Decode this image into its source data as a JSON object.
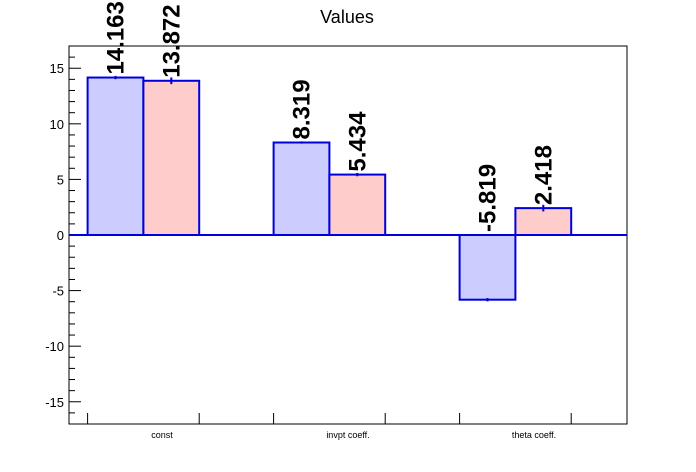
{
  "chart_data": {
    "type": "bar",
    "title": "Values",
    "xlabel": "",
    "ylabel": "",
    "categories": [
      "const",
      "invpt coeff.",
      "theta coeff."
    ],
    "series": [
      {
        "values": [
          14.163,
          8.319,
          -5.819
        ],
        "labels": [
          "14.163",
          "8.319",
          "-5.819"
        ],
        "errors": [
          0.15,
          0.1,
          0.15
        ]
      },
      {
        "values": [
          13.872,
          5.434,
          2.418
        ],
        "labels": [
          "13.872",
          "5.434",
          "2.418"
        ],
        "errors": [
          0.3,
          0.15,
          0.3
        ]
      }
    ],
    "ylim": [
      -17,
      17
    ],
    "yticks": [
      -15,
      -10,
      -5,
      0,
      5,
      10,
      15
    ],
    "grid": false,
    "legend": "none",
    "colors": {
      "series_fill": [
        "#ccccff",
        "#ffcccc"
      ],
      "bar_edge": "#0000dd",
      "zero_line": "#0000dd"
    }
  }
}
